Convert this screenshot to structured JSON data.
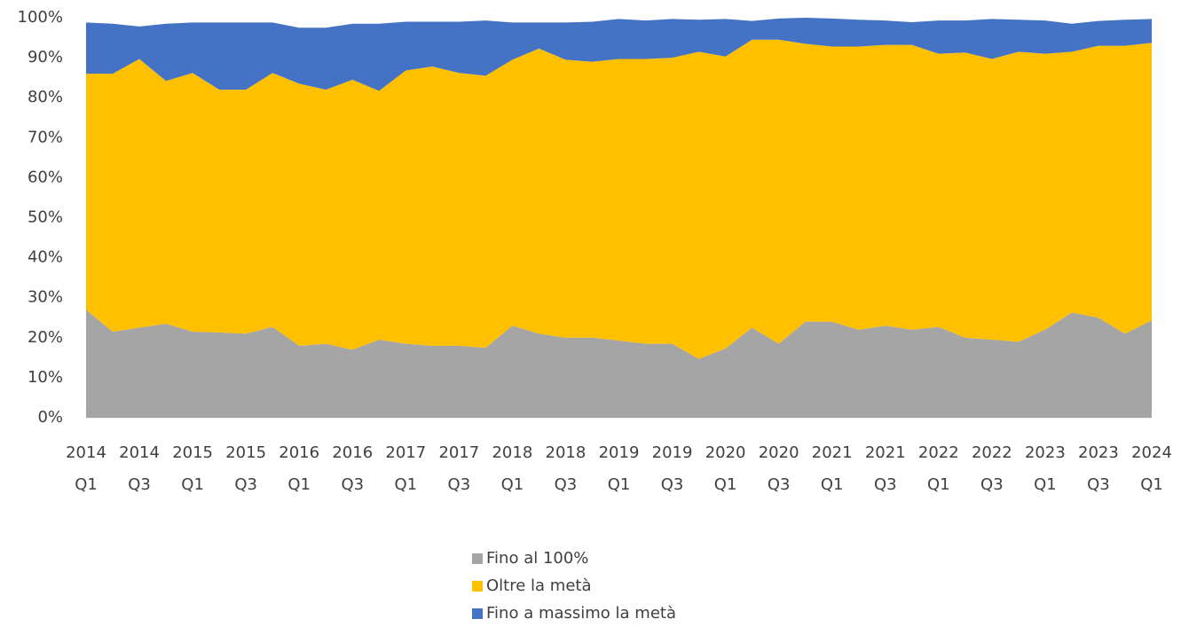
{
  "chart_data": {
    "type": "stacked_area",
    "categories": [
      "2014 Q1",
      null,
      "2014 Q3",
      null,
      "2015 Q1",
      null,
      "2015 Q3",
      null,
      "2016 Q1",
      null,
      "2016 Q3",
      null,
      "2017 Q1",
      null,
      "2017 Q3",
      null,
      "2018 Q1",
      null,
      "2018 Q3",
      null,
      "2019 Q1",
      null,
      "2019 Q3",
      null,
      "2020 Q1",
      null,
      "2020 Q3",
      null,
      "2021 Q1",
      null,
      "2021 Q3",
      null,
      "2022 Q1",
      null,
      "2022 Q3",
      null,
      "2023 Q1",
      null,
      "2023 Q3",
      null,
      "2024 Q1"
    ],
    "series": [
      {
        "name": "Fino al 100%",
        "color": "#a5a5a5",
        "values": [
          27,
          21.5,
          22.5,
          23.5,
          21.5,
          21.3,
          21,
          22.7,
          18,
          18.5,
          17,
          19.5,
          18.5,
          18,
          18,
          17.5,
          23,
          21,
          20,
          20,
          19.3,
          18.5,
          18.5,
          14.7,
          17.3,
          22.5,
          18.5,
          24,
          24,
          22,
          23,
          22,
          22.7,
          20,
          19.5,
          19,
          22,
          26.3,
          25,
          21,
          24.3
        ]
      },
      {
        "name": "Oltre la metà",
        "color": "#ffc000",
        "values": [
          59,
          64.5,
          67.2,
          60.7,
          64.7,
          60.7,
          61,
          63.5,
          65.5,
          63.5,
          67.5,
          62.2,
          68.3,
          69.8,
          68.2,
          68,
          66.5,
          71.3,
          69.5,
          69,
          70.4,
          71.2,
          71.5,
          76.8,
          73,
          72,
          76,
          69.5,
          68.8,
          70.8,
          70.2,
          71.2,
          68.3,
          71.3,
          70.2,
          72.5,
          69,
          65.2,
          68,
          72,
          69.4
        ]
      },
      {
        "name": "Fino a massimo la metà",
        "color": "#4472c4",
        "values": [
          12.8,
          12.5,
          8.1,
          14.3,
          12.6,
          16.8,
          16.8,
          12.6,
          14,
          15.5,
          14,
          16.8,
          12.2,
          11.2,
          12.8,
          13.8,
          9.3,
          6.5,
          9.3,
          10,
          10,
          9.6,
          9.7,
          8,
          9.4,
          4.7,
          5.3,
          6.5,
          7,
          6.7,
          6.1,
          5.7,
          8.3,
          8,
          10,
          8,
          8.3,
          7,
          6.2,
          6.5,
          6
        ]
      }
    ],
    "ylim": [
      0,
      100
    ],
    "yticks": [
      {
        "value": 0,
        "label": "0%"
      },
      {
        "value": 10,
        "label": "10%"
      },
      {
        "value": 20,
        "label": "20%"
      },
      {
        "value": 30,
        "label": "30%"
      },
      {
        "value": 40,
        "label": "40%"
      },
      {
        "value": 50,
        "label": "50%"
      },
      {
        "value": 60,
        "label": "60%"
      },
      {
        "value": 70,
        "label": "70%"
      },
      {
        "value": 80,
        "label": "80%"
      },
      {
        "value": 90,
        "label": "90%"
      },
      {
        "value": 100,
        "label": "100%"
      }
    ],
    "grid": false,
    "legend": "bottom"
  }
}
